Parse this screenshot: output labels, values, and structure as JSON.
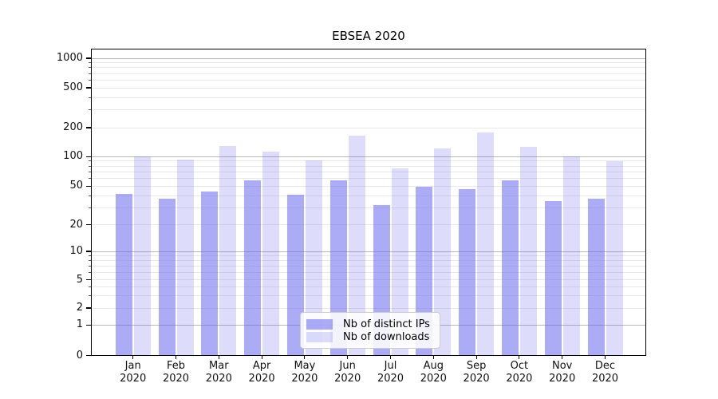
{
  "chart_data": {
    "type": "bar",
    "title": "EBSEA 2020",
    "categories": [
      "Jan 2020",
      "Feb 2020",
      "Mar 2020",
      "Apr 2020",
      "May 2020",
      "Jun 2020",
      "Jul 2020",
      "Aug 2020",
      "Sep 2020",
      "Oct 2020",
      "Nov 2020",
      "Dec 2020"
    ],
    "series": [
      {
        "name": "Nb of distinct IPs",
        "color": "rgba(102,102,238,0.55)",
        "values": [
          42,
          37,
          44,
          57,
          41,
          57,
          32,
          49,
          47,
          57,
          35,
          37
        ]
      },
      {
        "name": "Nb of downloads",
        "color": "rgba(102,102,238,0.22)",
        "values": [
          101,
          93,
          130,
          112,
          92,
          165,
          76,
          122,
          180,
          126,
          100,
          90
        ]
      }
    ],
    "yticks": [
      0,
      1,
      2,
      5,
      10,
      20,
      50,
      100,
      200,
      500,
      1000
    ],
    "ylim": [
      0,
      1400
    ],
    "yscale": "log-like",
    "grid": true,
    "legend_position": "lower center",
    "colors": {
      "grid_major": "#b8b8b8",
      "grid_minor": "#e8e8e8",
      "spine": "#000000",
      "text": "#111111"
    }
  }
}
